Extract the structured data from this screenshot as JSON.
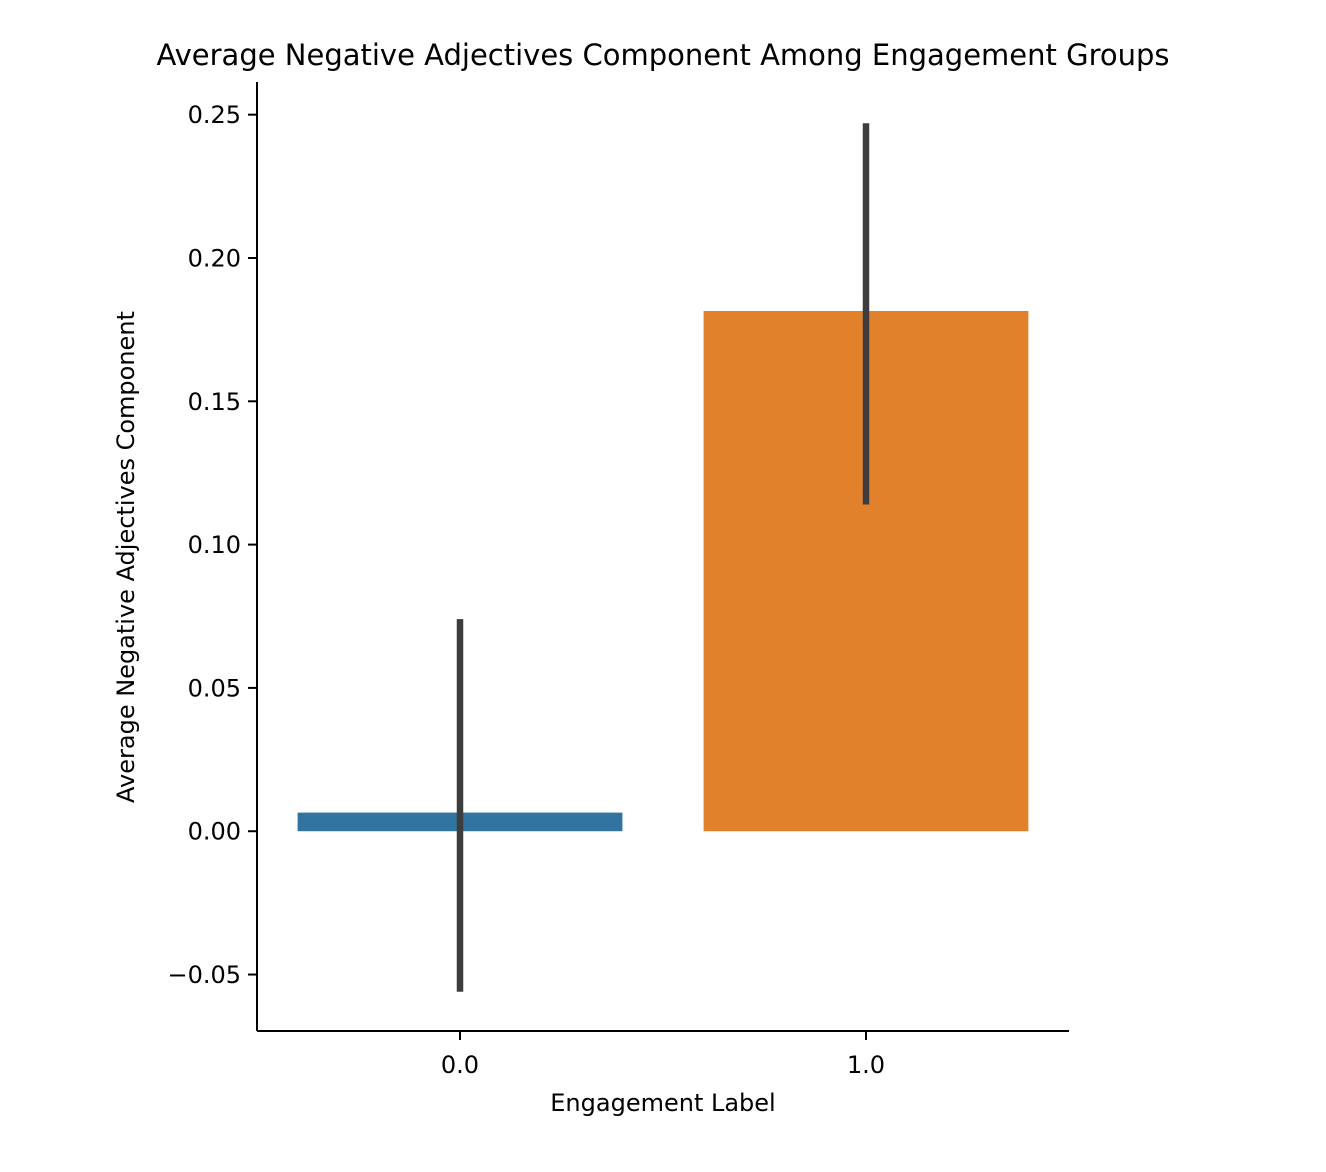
{
  "chart_data": {
    "type": "bar",
    "title": "Average Negative Adjectives Component Among Engagement Groups",
    "xlabel": "Engagement Label",
    "ylabel": "Average Negative Adjectives Component",
    "categories": [
      "0.0",
      "1.0"
    ],
    "values": [
      0.0065,
      0.1815
    ],
    "error_bars": [
      {
        "low": -0.056,
        "high": 0.074
      },
      {
        "low": 0.114,
        "high": 0.247
      }
    ],
    "colors": [
      "#3274a1",
      "#e1812c"
    ],
    "error_bar_color": "#3d3d3d",
    "ylim": [
      -0.0697,
      0.2614
    ],
    "yticks": [
      -0.05,
      0.0,
      0.05,
      0.1,
      0.15,
      0.2,
      0.25
    ],
    "ytick_labels": [
      "−0.05",
      "0.00",
      "0.05",
      "0.10",
      "0.15",
      "0.20",
      "0.25"
    ],
    "grid": false,
    "legend": "none"
  }
}
